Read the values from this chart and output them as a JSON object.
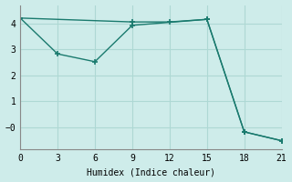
{
  "xlabel": "Humidex (Indice chaleur)",
  "bg_color": "#ceecea",
  "grid_color": "#aed8d4",
  "line_color": "#1a7a6e",
  "line1_x": [
    0,
    9,
    12,
    15,
    18,
    21
  ],
  "line1_y": [
    4.2,
    4.05,
    4.05,
    4.15,
    -0.18,
    -0.52
  ],
  "line2_x": [
    0,
    3,
    6,
    9,
    15,
    18,
    21
  ],
  "line2_y": [
    4.2,
    2.82,
    2.52,
    3.92,
    4.15,
    -0.18,
    -0.52
  ],
  "xlim": [
    0,
    21
  ],
  "ylim": [
    -0.85,
    4.7
  ],
  "xticks": [
    0,
    3,
    6,
    9,
    12,
    15,
    18,
    21
  ],
  "yticks": [
    4,
    3,
    2,
    1
  ],
  "neg_zero_y": -0.0
}
